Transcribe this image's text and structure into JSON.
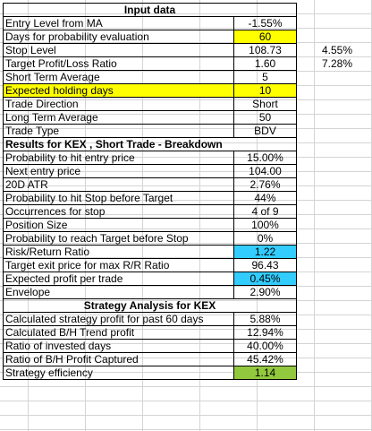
{
  "input": {
    "header": "Input data",
    "rows": [
      {
        "label": "Entry Level from MA",
        "value": "-1.55%",
        "extra": ""
      },
      {
        "label": "Days for probability evaluation",
        "value": "60",
        "extra": ""
      },
      {
        "label": "Stop Level",
        "value": "108.73",
        "extra": "4.55%"
      },
      {
        "label": "Target Profit/Loss Ratio",
        "value": "1.60",
        "extra": "7.28%"
      },
      {
        "label": "Short Term Average",
        "value": "5",
        "extra": ""
      },
      {
        "label": "Expected holding days",
        "value": "10",
        "extra": ""
      },
      {
        "label": "Trade Direction",
        "value": "Short",
        "extra": ""
      },
      {
        "label": "Long Term Average",
        "value": "50",
        "extra": ""
      },
      {
        "label": "Trade Type",
        "value": "BDV",
        "extra": ""
      }
    ]
  },
  "results": {
    "header": "Results for KEX , Short Trade - Breakdown",
    "rows": [
      {
        "label": "Probability to hit entry price",
        "value": "15.00%"
      },
      {
        "label": "Next entry price",
        "value": "104.00"
      },
      {
        "label": "20D ATR",
        "value": "2.76%"
      },
      {
        "label": "Probability to hit Stop before Target",
        "value": "44%"
      },
      {
        "label": "Occurrences for stop",
        "value": "4 of 9"
      },
      {
        "label": "Position Size",
        "value": "100%"
      },
      {
        "label": "Probability to reach Target before Stop",
        "value": "0%"
      },
      {
        "label": "Risk/Return Ratio",
        "value": "1.22"
      },
      {
        "label": "Target exit price for max R/R Ratio",
        "value": "96.43"
      },
      {
        "label": "Expected profit per trade",
        "value": "0.45%"
      },
      {
        "label": "Envelope",
        "value": "2.90%"
      }
    ]
  },
  "strategy": {
    "header": "Strategy Analysis for KEX",
    "rows": [
      {
        "label": "Calculated strategy profit for past 60 days",
        "value": "5.88%"
      },
      {
        "label": "Calculated B/H Trend profit",
        "value": "12.94%"
      },
      {
        "label": "Ratio of invested days",
        "value": "40.00%"
      },
      {
        "label": "Ratio of B/H Profit Captured",
        "value": "45.42%"
      },
      {
        "label": "Strategy efficiency",
        "value": "1.14"
      }
    ]
  },
  "colors": {
    "highlight": "#ffff00",
    "blue": "#33ccff",
    "green": "#92c83e",
    "gridline": "#d4d4d4"
  }
}
